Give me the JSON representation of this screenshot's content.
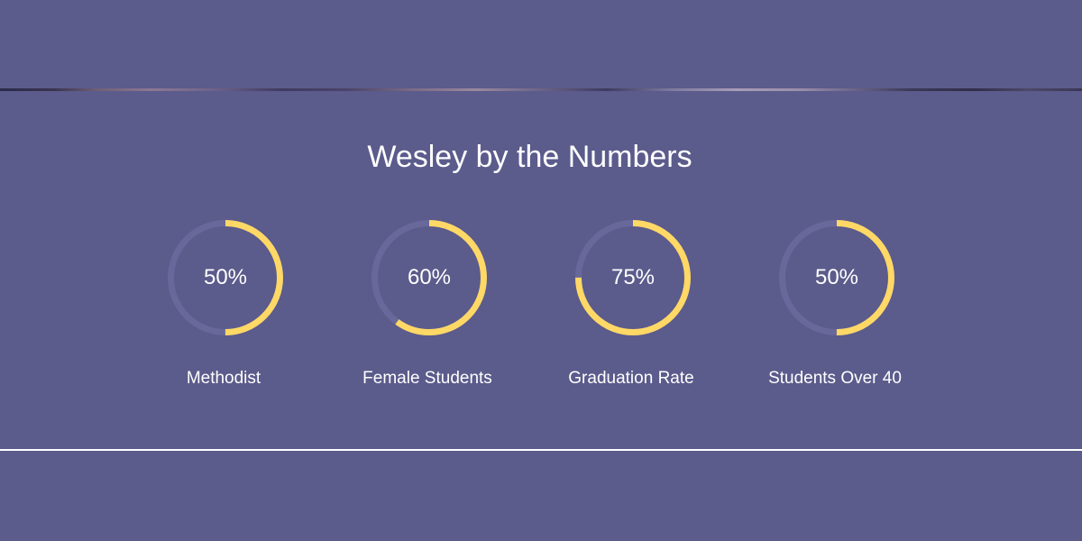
{
  "section": {
    "title": "Wesley by the Numbers"
  },
  "colors": {
    "background": "#5b5b8c",
    "ring_track": "#68689a",
    "ring_fill": "#ffd866",
    "text": "#ffffff"
  },
  "stats": [
    {
      "value_label": "50%",
      "percent": 50,
      "label": "Methodist"
    },
    {
      "value_label": "60%",
      "percent": 60,
      "label": "Female Students"
    },
    {
      "value_label": "75%",
      "percent": 75,
      "label": "Graduation Rate"
    },
    {
      "value_label": "50%",
      "percent": 50,
      "label": "Students Over 40"
    }
  ]
}
